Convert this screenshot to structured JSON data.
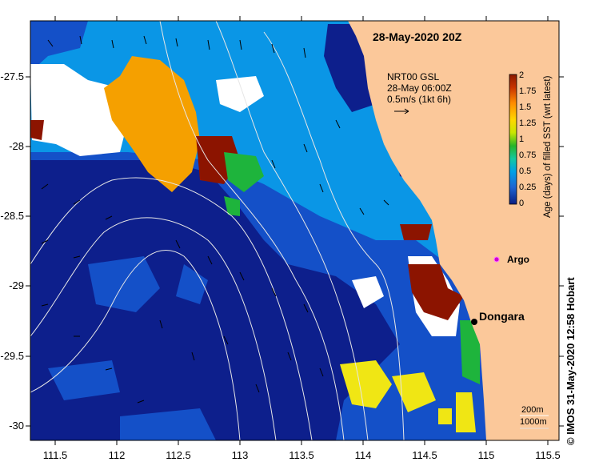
{
  "title": "28-May-2020 20Z",
  "credit": "IMOS 31-May-2020 12:58 Hobart",
  "copyright_symbol": "©",
  "axes": {
    "x_ticks": [
      "111.5",
      "112",
      "112.5",
      "113",
      "113.5",
      "114",
      "114.5",
      "115",
      "115.5"
    ],
    "y_ticks": [
      "-27.5",
      "-28",
      "-28.5",
      "-29",
      "-29.5",
      "-30"
    ]
  },
  "current_legend": {
    "line1": "NRT00 GSL",
    "line2": "28-May 06:00Z",
    "line3": "0.5m/s (1kt 6h)"
  },
  "colorbar": {
    "label": "Age (days) of filled SST (wrt latest)",
    "ticks": [
      "2",
      "1.75",
      "1.5",
      "1.25",
      "1",
      "0.75",
      "0.5",
      "0.25",
      "0"
    ],
    "colors": [
      "#8b1a00",
      "#c83200",
      "#ff8c00",
      "#ffd700",
      "#c8e600",
      "#28b428",
      "#14c8a0",
      "#00a0e6",
      "#1e64d2",
      "#0a1e82"
    ]
  },
  "places": {
    "dongara": "Dongara",
    "argo": "Argo"
  },
  "depth_legend": {
    "line1": "200m",
    "line2": "1000m"
  },
  "colors": {
    "land": "#fbc89a",
    "deep_blue": "#0d1f8c",
    "mid_blue": "#1450c8",
    "light_blue": "#0a96e6",
    "orange": "#f5a000",
    "dark_red": "#8c1400",
    "green": "#1eb43c",
    "yellow": "#f0e614",
    "white": "#ffffff",
    "argo_marker": "#d000d0"
  }
}
